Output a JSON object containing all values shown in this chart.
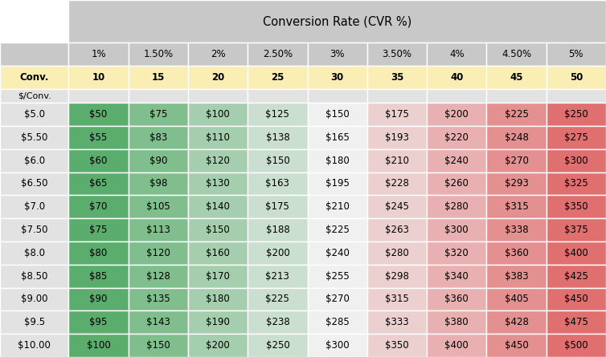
{
  "title": "Conversion Rate (CVR %)",
  "cvr_labels": [
    "1%",
    "1.50%",
    "2%",
    "2.50%",
    "3%",
    "3.50%",
    "4%",
    "4.50%",
    "5%"
  ],
  "conv_values": [
    10,
    15,
    20,
    25,
    30,
    35,
    40,
    45,
    50
  ],
  "dollar_labels": [
    "$5.0",
    "$5.50",
    "$6.0",
    "$6.50",
    "$7.0",
    "$7.50",
    "$8.0",
    "$8.50",
    "$9.00",
    "$9.5",
    "$10.00"
  ],
  "cell_values": [
    [
      50,
      75,
      100,
      125,
      150,
      175,
      200,
      225,
      250
    ],
    [
      55,
      83,
      110,
      138,
      165,
      193,
      220,
      248,
      275
    ],
    [
      60,
      90,
      120,
      150,
      180,
      210,
      240,
      270,
      300
    ],
    [
      65,
      98,
      130,
      163,
      195,
      228,
      260,
      293,
      325
    ],
    [
      70,
      105,
      140,
      175,
      210,
      245,
      280,
      315,
      350
    ],
    [
      75,
      113,
      150,
      188,
      225,
      263,
      300,
      338,
      375
    ],
    [
      80,
      120,
      160,
      200,
      240,
      280,
      320,
      360,
      400
    ],
    [
      85,
      128,
      170,
      213,
      255,
      298,
      340,
      383,
      425
    ],
    [
      90,
      135,
      180,
      225,
      270,
      315,
      360,
      405,
      450
    ],
    [
      95,
      143,
      190,
      238,
      285,
      333,
      380,
      428,
      475
    ],
    [
      100,
      150,
      200,
      250,
      300,
      350,
      400,
      450,
      500
    ]
  ],
  "header_bg": "#c8c8c8",
  "conv_row_bg": "#faeeb5",
  "dollar_col_bg": "#e2e2e2",
  "top_left_bg": "#ffffff",
  "dollar_label_row_bg": "#e2e2e2",
  "color_green": "#5aad6c",
  "color_white": "#f0f0f0",
  "color_red": "#e07070",
  "n_data_cols": 9
}
